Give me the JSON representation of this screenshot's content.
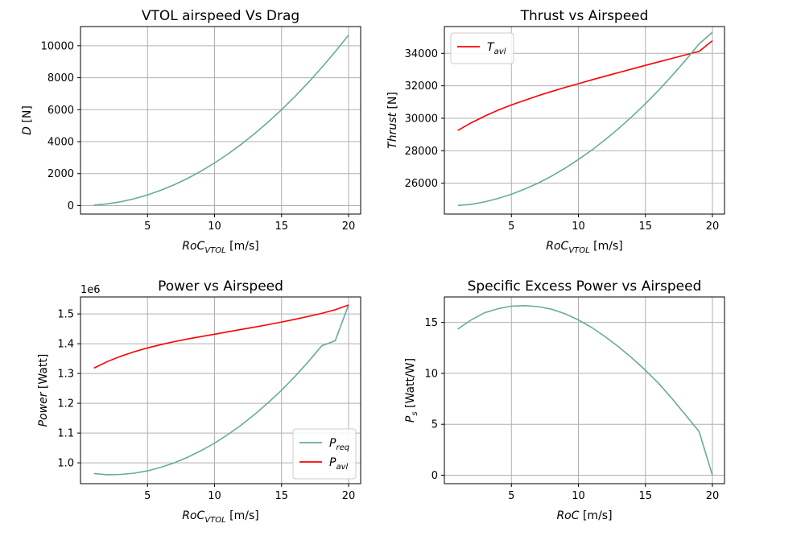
{
  "colors": {
    "teal": "#67AB9F",
    "red": "#FF0000",
    "grid": "#B0B0B0"
  },
  "chart_data": [
    {
      "type": "line",
      "title": "VTOL airspeed Vs Drag",
      "xlabel_main": "RoC",
      "xlabel_sub": "VTOL",
      "xlabel_unit": " [m/s]",
      "ylabel_main": "D",
      "ylabel_sub": "",
      "ylabel_unit": " [N]",
      "xlim": [
        0,
        20.9
      ],
      "ylim": [
        -530,
        11200
      ],
      "xticks": [
        5,
        10,
        15,
        20
      ],
      "yticks": [
        0,
        2000,
        4000,
        6000,
        8000,
        10000
      ],
      "ytick_labels": [
        "0",
        "2000",
        "4000",
        "6000",
        "8000",
        "10000"
      ],
      "offset_label": "",
      "grid": true,
      "series": [
        {
          "color": "#67AB9F",
          "label_main": "",
          "label_sub": "",
          "x": [
            1,
            2,
            3,
            4,
            5,
            6,
            7,
            8,
            9,
            10,
            11,
            12,
            13,
            14,
            15,
            16,
            17,
            18,
            19,
            20
          ],
          "y": [
            27,
            107,
            240,
            427,
            667,
            960,
            1307,
            1707,
            2160,
            2667,
            3227,
            3840,
            4507,
            5227,
            6000,
            6827,
            7707,
            8640,
            9627,
            10667
          ]
        }
      ],
      "legend": ""
    },
    {
      "type": "line",
      "title": "Thrust vs Airspeed",
      "xlabel_main": "RoC",
      "xlabel_sub": "VTOL",
      "xlabel_unit": " [m/s]",
      "ylabel_main": "Thrust",
      "ylabel_sub": "",
      "ylabel_unit": " [N]",
      "xlim": [
        0,
        20.9
      ],
      "ylim": [
        24100,
        35650
      ],
      "xticks": [
        5,
        10,
        15,
        20
      ],
      "yticks": [
        26000,
        28000,
        30000,
        32000,
        34000
      ],
      "ytick_labels": [
        "26000",
        "28000",
        "30000",
        "32000",
        "34000"
      ],
      "offset_label": "",
      "grid": true,
      "series": [
        {
          "color": "#FF0000",
          "label_main": "T",
          "label_sub": "avl",
          "x": [
            1,
            2,
            3,
            4,
            5,
            6,
            7,
            8,
            9,
            10,
            11,
            12,
            13,
            14,
            15,
            16,
            17,
            18,
            19,
            20
          ],
          "y": [
            29250,
            29720,
            30130,
            30500,
            30820,
            31110,
            31390,
            31650,
            31900,
            32130,
            32370,
            32590,
            32820,
            33040,
            33260,
            33480,
            33690,
            33910,
            34120,
            34780
          ]
        },
        {
          "color": "#67AB9F",
          "label_main": "",
          "label_sub": "",
          "x": [
            1,
            2,
            3,
            4,
            5,
            6,
            7,
            8,
            9,
            10,
            11,
            12,
            13,
            14,
            15,
            16,
            17,
            18,
            19,
            20
          ],
          "y": [
            24630,
            24700,
            24850,
            25060,
            25320,
            25640,
            26010,
            26440,
            26920,
            27460,
            28040,
            28680,
            29370,
            30110,
            30900,
            31740,
            32640,
            33580,
            34580,
            35300
          ]
        }
      ],
      "legend": "upper-left"
    },
    {
      "type": "line",
      "title": "Power vs Airspeed",
      "xlabel_main": "RoC",
      "xlabel_sub": "VTOL",
      "xlabel_unit": " [m/s]",
      "ylabel_main": "Power",
      "ylabel_sub": "",
      "ylabel_unit": " [Watt]",
      "xlim": [
        0,
        20.9
      ],
      "ylim": [
        0.93,
        1.557
      ],
      "xticks": [
        5,
        10,
        15,
        20
      ],
      "yticks": [
        1.0,
        1.1,
        1.2,
        1.3,
        1.4,
        1.5
      ],
      "ytick_labels": [
        "1.0",
        "1.1",
        "1.2",
        "1.3",
        "1.4",
        "1.5"
      ],
      "offset_label": "1e6",
      "grid": true,
      "series": [
        {
          "color": "#67AB9F",
          "label_main": "P",
          "label_sub": "req",
          "x": [
            1,
            2,
            3,
            4,
            5,
            6,
            7,
            8,
            9,
            10,
            11,
            12,
            13,
            14,
            15,
            16,
            17,
            18,
            19,
            20
          ],
          "y": [
            0.964,
            0.96,
            0.961,
            0.965,
            0.973,
            0.985,
            1.0,
            1.019,
            1.041,
            1.066,
            1.095,
            1.127,
            1.163,
            1.202,
            1.244,
            1.29,
            1.34,
            1.393,
            1.41,
            1.53
          ]
        },
        {
          "color": "#FF0000",
          "label_main": "P",
          "label_sub": "avl",
          "x": [
            1,
            2,
            3,
            4,
            5,
            6,
            7,
            8,
            9,
            10,
            11,
            12,
            13,
            14,
            15,
            16,
            17,
            18,
            19,
            20
          ],
          "y": [
            1.318,
            1.34,
            1.358,
            1.373,
            1.386,
            1.397,
            1.407,
            1.416,
            1.424,
            1.432,
            1.44,
            1.448,
            1.456,
            1.464,
            1.473,
            1.482,
            1.492,
            1.502,
            1.514,
            1.53
          ]
        }
      ],
      "legend": "lower-right"
    },
    {
      "type": "line",
      "title": "Specific Excess Power vs Airspeed",
      "xlabel_main": "RoC",
      "xlabel_sub": "",
      "xlabel_unit": " [m/s]",
      "ylabel_main": "P",
      "ylabel_sub": "s",
      "ylabel_unit": " [Watt/W]",
      "xlim": [
        0,
        20.9
      ],
      "ylim": [
        -0.83,
        17.5
      ],
      "xticks": [
        5,
        10,
        15,
        20
      ],
      "yticks": [
        0,
        5,
        10,
        15
      ],
      "ytick_labels": [
        "0",
        "5",
        "10",
        "15"
      ],
      "offset_label": "",
      "grid": true,
      "series": [
        {
          "color": "#67AB9F",
          "label_main": "",
          "label_sub": "",
          "x": [
            1,
            2,
            3,
            4,
            5,
            6,
            7,
            8,
            9,
            10,
            11,
            12,
            13,
            14,
            15,
            16,
            17,
            18,
            19,
            20
          ],
          "y": [
            14.35,
            15.25,
            15.95,
            16.35,
            16.6,
            16.65,
            16.55,
            16.3,
            15.85,
            15.25,
            14.5,
            13.6,
            12.6,
            11.5,
            10.3,
            9.0,
            7.5,
            5.9,
            4.3,
            0.0
          ]
        }
      ],
      "legend": ""
    }
  ]
}
